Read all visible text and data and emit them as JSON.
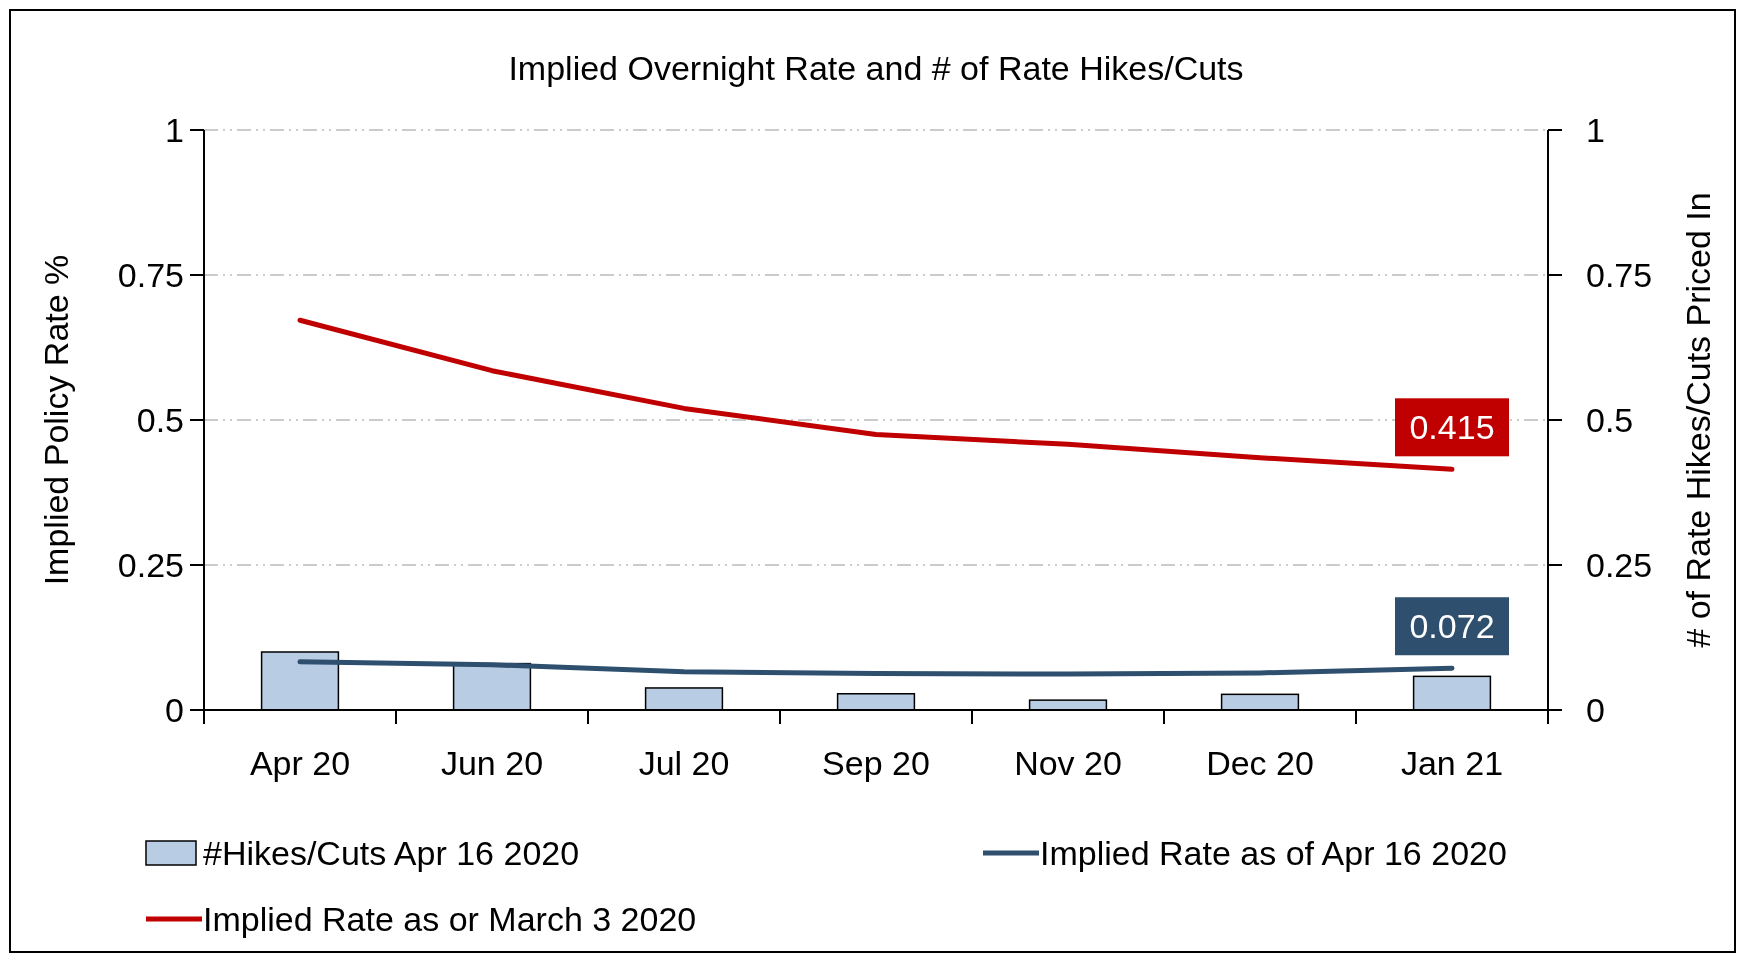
{
  "chart_data": {
    "type": "line",
    "title": "Implied Overnight Rate and # of Rate Hikes/Cuts",
    "ylabel": "Implied Policy Rate %",
    "y2label": "# of Rate Hikes/Cuts Priced In",
    "categories": [
      "Apr 20",
      "Jun 20",
      "Jul 20",
      "Sep 20",
      "Nov 20",
      "Dec 20",
      "Jan 21"
    ],
    "series": [
      {
        "name": "#Hikes/Cuts Apr 16 2020",
        "type": "bar",
        "axis": "y2",
        "color": "#b8cce4",
        "values": [
          0.1,
          0.08,
          0.038,
          0.028,
          0.017,
          0.027,
          0.058
        ]
      },
      {
        "name": "Implied Rate as of Apr 16 2020",
        "color": "#2f4f6f",
        "values": [
          0.083,
          0.078,
          0.066,
          0.063,
          0.062,
          0.064,
          0.072
        ],
        "value_labels": [
          null,
          null,
          null,
          null,
          null,
          null,
          "0.072"
        ]
      },
      {
        "name": "Implied Rate as or March 3 2020",
        "color": "#c00000",
        "values": [
          0.672,
          0.585,
          0.52,
          0.475,
          0.458,
          0.435,
          0.415
        ],
        "value_labels": [
          null,
          null,
          null,
          null,
          null,
          null,
          "0.415"
        ]
      }
    ],
    "ylim": [
      0,
      1
    ],
    "yticks": [
      0,
      0.25,
      0.5,
      0.75,
      1
    ],
    "y2lim": [
      0,
      1
    ],
    "y2ticks": [
      0,
      0.25,
      0.5,
      0.75,
      1
    ],
    "grid": "y",
    "legend": "bottom",
    "marker": "none",
    "line_style": "solid"
  }
}
